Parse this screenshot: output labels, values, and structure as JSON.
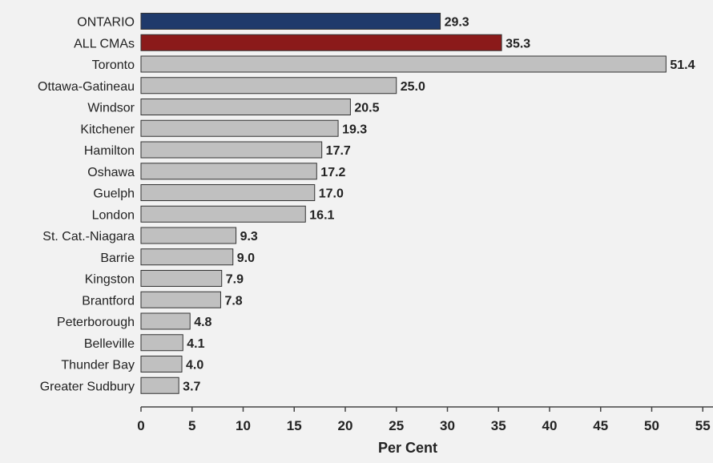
{
  "chart_data": {
    "type": "bar",
    "orientation": "horizontal",
    "xlabel": "Per Cent",
    "xlim": [
      0,
      56
    ],
    "xticks": [
      0,
      5,
      10,
      15,
      20,
      25,
      30,
      35,
      40,
      45,
      50,
      55
    ],
    "grid": false,
    "categories": [
      "ONTARIO",
      "ALL CMAs",
      "Toronto",
      "Ottawa-Gatineau",
      "Windsor",
      "Kitchener",
      "Hamilton",
      "Oshawa",
      "Guelph",
      "London",
      "St. Cat.-Niagara",
      "Barrie",
      "Kingston",
      "Brantford",
      "Peterborough",
      "Belleville",
      "Thunder Bay",
      "Greater Sudbury"
    ],
    "values": [
      29.3,
      35.3,
      51.4,
      25.0,
      20.5,
      19.3,
      17.7,
      17.2,
      17.0,
      16.1,
      9.3,
      9.0,
      7.9,
      7.8,
      4.8,
      4.1,
      4.0,
      3.7
    ],
    "value_labels": [
      "29.3",
      "35.3",
      "51.4",
      "25.0",
      "20.5",
      "19.3",
      "17.7",
      "17.2",
      "17.0",
      "16.1",
      "9.3",
      "9.0",
      "7.9",
      "7.8",
      "4.8",
      "4.1",
      "4.0",
      "3.7"
    ],
    "bar_colors": [
      "#1f3a6b",
      "#8b1a1a",
      "#c0c0c0",
      "#c0c0c0",
      "#c0c0c0",
      "#c0c0c0",
      "#c0c0c0",
      "#c0c0c0",
      "#c0c0c0",
      "#c0c0c0",
      "#c0c0c0",
      "#c0c0c0",
      "#c0c0c0",
      "#c0c0c0",
      "#c0c0c0",
      "#c0c0c0",
      "#c0c0c0",
      "#c0c0c0"
    ],
    "background_color": "#f2f2f2",
    "axis_color": "#444444"
  }
}
